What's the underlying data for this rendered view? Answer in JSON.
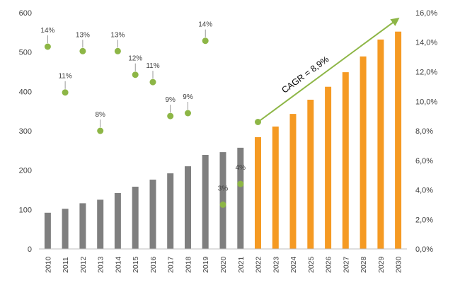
{
  "chart_data": {
    "type": "bar",
    "categories": [
      "2010",
      "2011",
      "2012",
      "2013",
      "2014",
      "2015",
      "2016",
      "2017",
      "2018",
      "2019",
      "2020",
      "2021",
      "2022",
      "2023",
      "2024",
      "2025",
      "2026",
      "2027",
      "2028",
      "2029",
      "2030"
    ],
    "series": [
      {
        "type": "bar",
        "values": [
          92,
          102,
          116,
          125,
          142,
          158,
          176,
          192,
          210,
          239,
          246,
          257,
          284,
          311,
          343,
          379,
          412,
          449,
          489,
          532,
          552
        ],
        "colors": [
          "#7f7f7f",
          "#7f7f7f",
          "#7f7f7f",
          "#7f7f7f",
          "#7f7f7f",
          "#7f7f7f",
          "#7f7f7f",
          "#7f7f7f",
          "#7f7f7f",
          "#7f7f7f",
          "#7f7f7f",
          "#7f7f7f",
          "#f59a23",
          "#f59a23",
          "#f59a23",
          "#f59a23",
          "#f59a23",
          "#f59a23",
          "#f59a23",
          "#f59a23",
          "#f59a23"
        ],
        "axis": "left"
      },
      {
        "type": "scatter",
        "values": [
          0.137,
          0.106,
          0.134,
          0.08,
          0.134,
          0.118,
          0.113,
          0.09,
          0.092,
          0.141,
          0.03,
          0.044
        ],
        "labels": [
          "14%",
          "11%",
          "13%",
          "8%",
          "13%",
          "12%",
          "11%",
          "9%",
          "9%",
          "14%",
          "3%",
          "4%"
        ],
        "color": "#8db646",
        "axis": "right"
      }
    ],
    "y_left": {
      "min": 0,
      "max": 600,
      "ticks": [
        "0",
        "100",
        "200",
        "300",
        "400",
        "500",
        "600"
      ]
    },
    "y_right": {
      "min": 0,
      "max": 0.16,
      "ticks": [
        "0,0%",
        "2,0%",
        "4,0%",
        "6,0%",
        "8,0%",
        "10,0%",
        "12,0%",
        "14,0%",
        "16,0%"
      ]
    },
    "annotation": {
      "text": "CAGR = 8,9%",
      "color": "#8db646",
      "from": [
        2022,
        0.086
      ],
      "to": [
        2030,
        0.156
      ]
    },
    "grid": false,
    "title": "",
    "xlabel": "",
    "ylabel": ""
  }
}
